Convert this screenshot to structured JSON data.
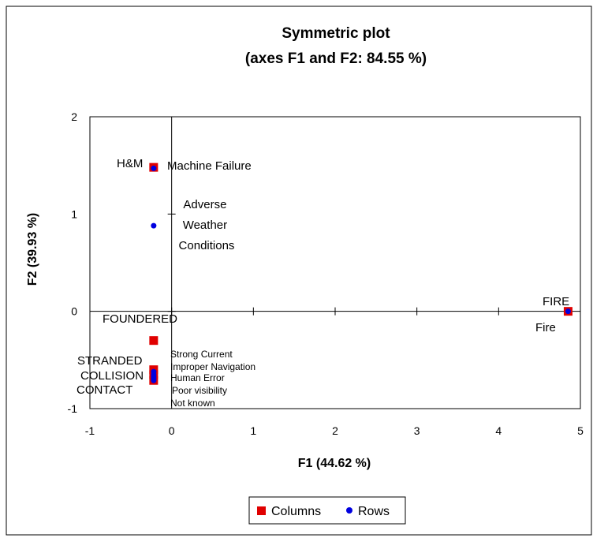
{
  "chart_data": {
    "type": "scatter",
    "title": "Symmetric plot",
    "subtitle": "(axes F1 and F2: 84.55 %)",
    "xlabel": "F1 (44.62 %)",
    "ylabel": "F2 (39.93 %)",
    "xlim": [
      -1,
      5
    ],
    "ylim": [
      -1,
      2
    ],
    "xticks": [
      "-1",
      "0",
      "1",
      "2",
      "3",
      "4",
      "5"
    ],
    "yticks": [
      "-1",
      "0",
      "1",
      "2"
    ],
    "grid": false,
    "legend_position": "bottom",
    "series": [
      {
        "name": "Columns",
        "color": "#e00000",
        "marker": "square",
        "points": [
          {
            "x": -0.22,
            "y": 1.48,
            "label": "H&M"
          },
          {
            "x": 4.85,
            "y": 0.0,
            "label": "FIRE"
          },
          {
            "x": -0.22,
            "y": -0.3,
            "label": "FOUNDERED"
          },
          {
            "x": -0.22,
            "y": -0.6,
            "label": "STRANDED"
          },
          {
            "x": -0.22,
            "y": -0.65,
            "label": "COLLISION"
          },
          {
            "x": -0.22,
            "y": -0.71,
            "label": "CONTACT"
          }
        ]
      },
      {
        "name": "Rows",
        "color": "#0000e0",
        "marker": "circle",
        "points": [
          {
            "x": -0.22,
            "y": 1.47,
            "label": "Machine Failure"
          },
          {
            "x": -0.22,
            "y": 0.88,
            "label": "Adverse Weather Conditions"
          },
          {
            "x": 4.85,
            "y": 0.0,
            "label": "Fire"
          },
          {
            "x": -0.22,
            "y": -0.62,
            "label": "Strong Current"
          },
          {
            "x": -0.22,
            "y": -0.65,
            "label": "Improper Navigation"
          },
          {
            "x": -0.22,
            "y": -0.67,
            "label": "Human Error"
          },
          {
            "x": -0.22,
            "y": -0.69,
            "label": "Poor visibility"
          },
          {
            "x": -0.22,
            "y": -0.71,
            "label": "Not known"
          }
        ]
      }
    ]
  }
}
